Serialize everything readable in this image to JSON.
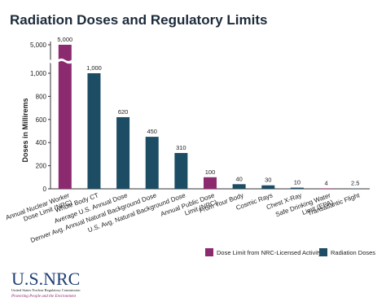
{
  "chart_data": {
    "type": "bar",
    "title": "Radiation Doses and Regulatory Limits",
    "y_label": "Doses in Millirems",
    "categories": [
      "Annual Nuclear Worker\nDose Limit (NRC)",
      "Whole Body CT",
      "Average U.S. Annual Dose",
      "Denver Avg. Annual Natural Background Dose",
      "U.S. Avg. Natural Background Dose",
      "Annual Public Dose\nLimit (NRC)",
      "From Your Body",
      "Cosmic Rays",
      "Chest X-Ray",
      "Safe Drinking Water\nLimit (EPA)",
      "Transatlantic Flight"
    ],
    "values": [
      5000,
      1000,
      620,
      450,
      310,
      100,
      40,
      30,
      10,
      4,
      2.5
    ],
    "value_labels": [
      "5,000",
      "1,000",
      "620",
      "450",
      "310",
      "100",
      "40",
      "30",
      "10",
      "4",
      "2.5"
    ],
    "colors": [
      "#8c2a6f",
      "#1d4d64",
      "#1d4d64",
      "#1d4d64",
      "#1d4d64",
      "#8c2a6f",
      "#1d4d64",
      "#1d4d64",
      "#1d4d64",
      "#8c2a6f",
      "#1d4d64"
    ],
    "ylim": [
      0,
      5000
    ],
    "ybreak": [
      1000,
      5000
    ],
    "yticks": [
      0,
      200,
      400,
      600,
      800,
      {
        "value": 1000,
        "label": "1,000"
      },
      {
        "value": 5000,
        "label": "5,000"
      }
    ],
    "legend": [
      {
        "name": "Dose Limit from NRC-Licensed Activity",
        "color": "#8c2a6f"
      },
      {
        "name": "Radiation Doses",
        "color": "#1d4d64"
      }
    ]
  },
  "logo": {
    "name": "U.S.NRC",
    "agency": "United States Nuclear Regulatory Commission",
    "motto": "Protecting People and the Environment"
  }
}
